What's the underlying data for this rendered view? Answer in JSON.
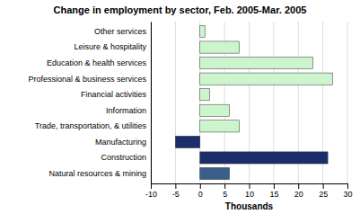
{
  "chart_data": {
    "type": "bar",
    "orientation": "horizontal",
    "title": "Change in employment by sector, Feb. 2005-Mar. 2005",
    "categories": [
      "Natural resources & mining",
      "Construction",
      "Manufacturing",
      "Trade, transportation, & utilities",
      "Information",
      "Financial activities",
      "Professional & business services",
      "Education & health services",
      "Leisure & hospitality",
      "Other services"
    ],
    "values": [
      6,
      26,
      -5,
      8,
      6,
      2,
      27,
      23,
      8,
      1
    ],
    "colors": [
      "#3a5f8a",
      "#1c2d6b",
      "#1c2d6b",
      "#cdf5cd",
      "#cdf5cd",
      "#cdf5cd",
      "#cdf5cd",
      "#cdf5cd",
      "#cdf5cd",
      "#cdf5cd"
    ],
    "xlabel": "Thousands",
    "xlim": [
      -10,
      30
    ],
    "xticks": [
      -10,
      -5,
      0,
      5,
      10,
      15,
      20,
      25,
      30
    ],
    "grid": true
  }
}
